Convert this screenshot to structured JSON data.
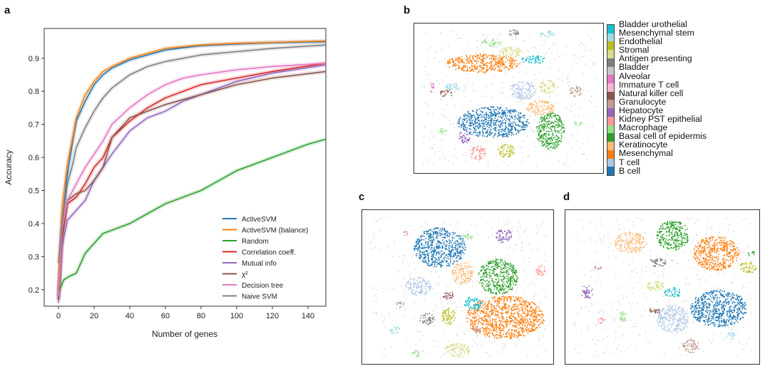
{
  "panels": {
    "a": "a",
    "b": "b",
    "c": "c",
    "d": "d"
  },
  "chart_data": {
    "type": "line",
    "title": "",
    "xlabel": "Number of genes",
    "ylabel": "Accuracy",
    "xlim": [
      -8,
      150
    ],
    "ylim": [
      0.15,
      0.99
    ],
    "xticks": [
      0,
      20,
      40,
      60,
      80,
      100,
      120,
      140
    ],
    "yticks": [
      0.2,
      0.3,
      0.4,
      0.5,
      0.6,
      0.7,
      0.8,
      0.9
    ],
    "legend_position": "bottom-right",
    "series": [
      {
        "name": "ActiveSVM",
        "color": "#1f77b4",
        "x": [
          0,
          2,
          5,
          8,
          10,
          15,
          20,
          25,
          30,
          40,
          50,
          60,
          70,
          80,
          100,
          120,
          150
        ],
        "y": [
          0.18,
          0.4,
          0.55,
          0.65,
          0.71,
          0.77,
          0.82,
          0.85,
          0.87,
          0.895,
          0.91,
          0.925,
          0.932,
          0.938,
          0.943,
          0.947,
          0.95
        ]
      },
      {
        "name": "ActiveSVM (balance)",
        "color": "#ff7f0e",
        "x": [
          0,
          2,
          5,
          8,
          10,
          15,
          20,
          25,
          30,
          40,
          50,
          60,
          70,
          80,
          100,
          120,
          150
        ],
        "y": [
          0.2,
          0.45,
          0.58,
          0.66,
          0.72,
          0.79,
          0.83,
          0.86,
          0.875,
          0.9,
          0.915,
          0.93,
          0.935,
          0.94,
          0.945,
          0.948,
          0.952
        ]
      },
      {
        "name": "Random",
        "color": "#2ca02c",
        "x": [
          0,
          3,
          6,
          10,
          15,
          20,
          25,
          30,
          40,
          50,
          60,
          70,
          80,
          90,
          100,
          110,
          120,
          130,
          140,
          150
        ],
        "y": [
          0.19,
          0.23,
          0.24,
          0.25,
          0.31,
          0.34,
          0.37,
          0.38,
          0.4,
          0.43,
          0.46,
          0.48,
          0.5,
          0.53,
          0.56,
          0.58,
          0.6,
          0.62,
          0.64,
          0.655
        ]
      },
      {
        "name": "Correlation coeff.",
        "color": "#d62728",
        "x": [
          0,
          2,
          5,
          10,
          15,
          20,
          25,
          30,
          40,
          50,
          60,
          70,
          80,
          100,
          120,
          150
        ],
        "y": [
          0.17,
          0.35,
          0.46,
          0.48,
          0.52,
          0.57,
          0.6,
          0.66,
          0.71,
          0.75,
          0.78,
          0.8,
          0.82,
          0.84,
          0.86,
          0.885
        ]
      },
      {
        "name": "Mutual info",
        "color": "#9467bd",
        "x": [
          0,
          2,
          5,
          10,
          15,
          20,
          25,
          30,
          40,
          50,
          60,
          70,
          80,
          100,
          120,
          150
        ],
        "y": [
          0.16,
          0.33,
          0.41,
          0.44,
          0.47,
          0.53,
          0.57,
          0.61,
          0.68,
          0.72,
          0.74,
          0.77,
          0.79,
          0.83,
          0.855,
          0.88
        ]
      },
      {
        "name": "χ²",
        "color": "#8c564b",
        "x": [
          0,
          2,
          5,
          10,
          15,
          20,
          25,
          30,
          40,
          50,
          60,
          70,
          80,
          100,
          120,
          150
        ],
        "y": [
          0.17,
          0.36,
          0.47,
          0.49,
          0.5,
          0.53,
          0.57,
          0.66,
          0.72,
          0.74,
          0.76,
          0.775,
          0.79,
          0.82,
          0.84,
          0.86
        ]
      },
      {
        "name": "Decision tree",
        "color": "#e377c2",
        "x": [
          0,
          2,
          5,
          10,
          15,
          20,
          25,
          30,
          40,
          50,
          60,
          70,
          80,
          100,
          120,
          150
        ],
        "y": [
          0.18,
          0.38,
          0.47,
          0.52,
          0.57,
          0.61,
          0.65,
          0.7,
          0.75,
          0.79,
          0.82,
          0.84,
          0.85,
          0.865,
          0.875,
          0.885
        ]
      },
      {
        "name": "Naive SVM",
        "color": "#7f7f7f",
        "x": [
          0,
          2,
          5,
          8,
          10,
          15,
          20,
          25,
          30,
          40,
          50,
          60,
          70,
          80,
          100,
          120,
          150
        ],
        "y": [
          0.28,
          0.4,
          0.52,
          0.58,
          0.63,
          0.69,
          0.74,
          0.78,
          0.81,
          0.85,
          0.875,
          0.89,
          0.9,
          0.91,
          0.92,
          0.93,
          0.94
        ]
      }
    ]
  },
  "legend_b": {
    "items": [
      {
        "label": "Bladder urothelial",
        "color": "#17becf"
      },
      {
        "label": "Mesenchymal stem",
        "color": "#9edae5"
      },
      {
        "label": "Endothelial",
        "color": "#bcbd22"
      },
      {
        "label": "Stromal",
        "color": "#dbdb8d"
      },
      {
        "label": "Antigen presenting",
        "color": "#7f7f7f"
      },
      {
        "label": "Bladder",
        "color": "#c7c7c7"
      },
      {
        "label": "Alveolar",
        "color": "#e377c2"
      },
      {
        "label": "Immature T cell",
        "color": "#f7b6d2"
      },
      {
        "label": "Natural killer cell",
        "color": "#8c564b"
      },
      {
        "label": "Granulocyte",
        "color": "#c49c94"
      },
      {
        "label": "Hepatocyte",
        "color": "#9467bd"
      },
      {
        "label": "Kidney PST epithelial",
        "color": "#ff9896"
      },
      {
        "label": "Macrophage",
        "color": "#98df8a"
      },
      {
        "label": "Basal cell of epidermis",
        "color": "#2ca02c"
      },
      {
        "label": "Keratinocyte",
        "color": "#ffbb78"
      },
      {
        "label": "Mesenchymal",
        "color": "#ff7f0e"
      },
      {
        "label": "T cell",
        "color": "#aec7e8"
      },
      {
        "label": "B cell",
        "color": "#1f77b4"
      }
    ]
  }
}
